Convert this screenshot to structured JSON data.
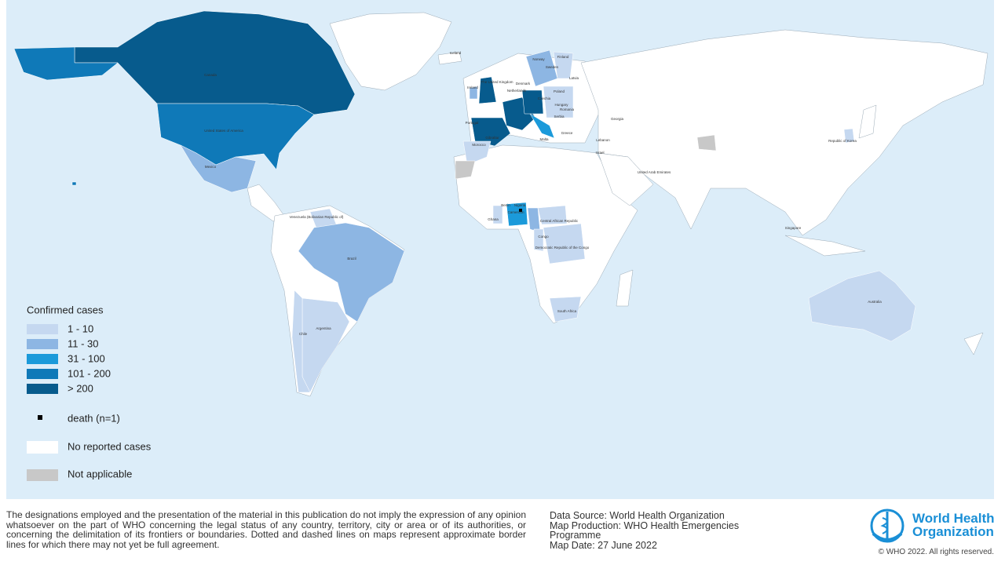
{
  "map": {
    "legend": {
      "title": "Confirmed cases",
      "items": [
        {
          "label": "1 - 10",
          "color": "#c5d8f0"
        },
        {
          "label": "11 - 30",
          "color": "#8db6e3"
        },
        {
          "label": "31 - 100",
          "color": "#1b9ada"
        },
        {
          "label": "101 - 200",
          "color": "#0f79b8"
        },
        {
          "label": "> 200",
          "color": "#075b8d"
        }
      ],
      "death": "death (n=1)",
      "no_cases": {
        "label": "No reported cases",
        "color": "#ffffff"
      },
      "not_applicable": {
        "label": "Not applicable",
        "color": "#c8c8c8"
      }
    },
    "labels": [
      "Iceland",
      "Canada",
      "United States of America",
      "Mexico",
      "Venezuela (Bolivarian Republic of)",
      "Brazil",
      "Argentina",
      "Chile",
      "Norway",
      "Sweden",
      "Finland",
      "Latvia",
      "The United Kingdom",
      "Ireland",
      "Denmark",
      "Netherlands",
      "Poland",
      "Czechia",
      "Hungary",
      "Romania",
      "Serbia",
      "Portugal",
      "Gibraltar",
      "Morocco",
      "Malta",
      "Greece",
      "Georgia",
      "Lebanon",
      "Israel",
      "United Arab Emirates",
      "Republic of Korea",
      "Singapore",
      "Australia",
      "Benin",
      "Nigeria",
      "Ghana",
      "Cameroon",
      "Central African Republic",
      "Congo",
      "Democratic Republic of the Congo",
      "South Africa"
    ]
  },
  "footer": {
    "disclaimer": "The designations employed and the presentation of the material in this publication do not imply the expression of any opinion whatsoever on the part of WHO concerning the legal status of any country, territory, city or area or of its authorities, or concerning the delimitation of its frontiers or boundaries. Dotted and dashed lines on maps represent approximate border lines for which there may not yet be full agreement.",
    "source": [
      "Data Source: World Health Organization",
      "Map Production: WHO Health Emergencies Programme",
      "Map Date: 27 June 2022"
    ],
    "logo": [
      "World Health",
      "Organization"
    ],
    "copyright": "© WHO 2022. All rights reserved."
  }
}
